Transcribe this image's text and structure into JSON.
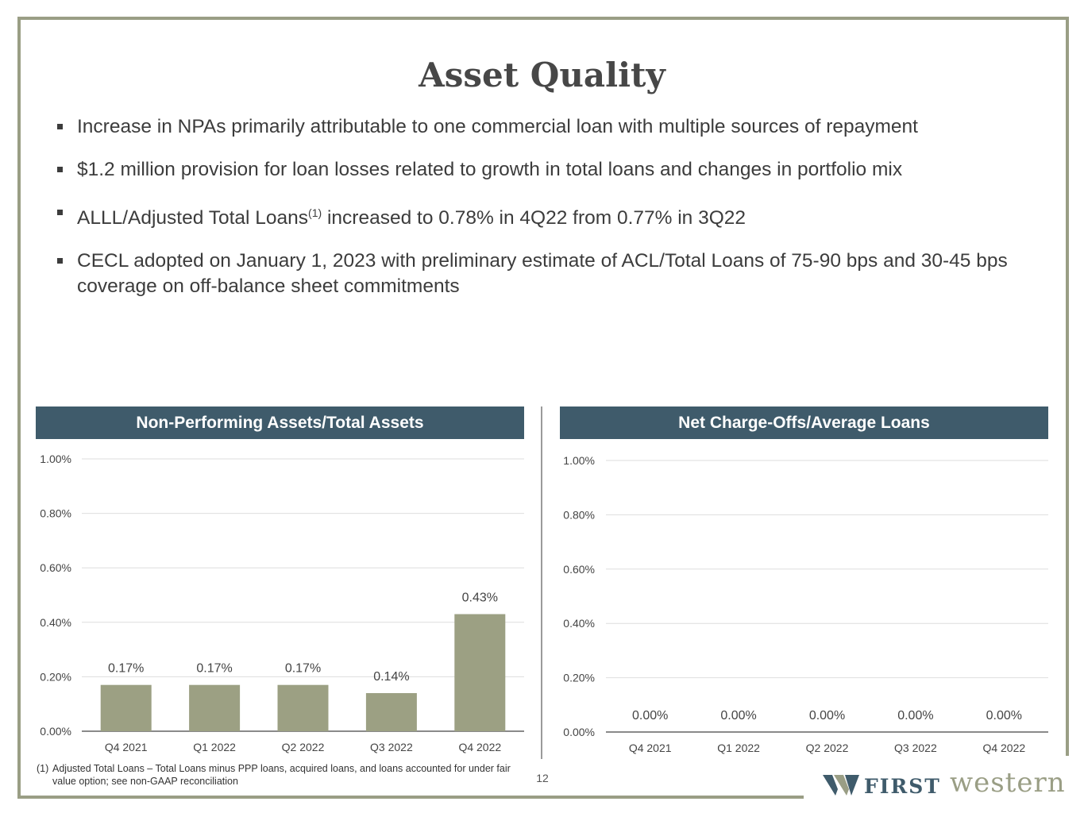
{
  "title": "Asset Quality",
  "bullets": [
    {
      "text": "Increase in NPAs primarily attributable to one commercial loan with multiple sources of repayment"
    },
    {
      "text": "$1.2 million provision for loan losses related to growth in total loans and changes in portfolio mix"
    },
    {
      "pre": "ALLL/Adjusted Total Loans",
      "sup": "(1)",
      "post": " increased to 0.78% in 4Q22 from 0.77% in 3Q22"
    },
    {
      "text": "CECL adopted on January 1, 2023 with preliminary estimate of ACL/Total Loans of 75-90 bps and 30-45 bps coverage on off-balance sheet commitments"
    }
  ],
  "colors": {
    "header": "#3f5b6b",
    "bar": "#9ca083",
    "frame": "#9a9e85"
  },
  "chart_data": [
    {
      "type": "bar",
      "title": "Non-Performing Assets/Total Assets",
      "categories": [
        "Q4 2021",
        "Q1 2022",
        "Q2 2022",
        "Q3 2022",
        "Q4 2022"
      ],
      "values": [
        0.17,
        0.17,
        0.17,
        0.14,
        0.43
      ],
      "labels": [
        "0.17%",
        "0.17%",
        "0.17%",
        "0.14%",
        "0.43%"
      ],
      "yticks": [
        "0.00%",
        "0.20%",
        "0.40%",
        "0.60%",
        "0.80%",
        "1.00%"
      ],
      "ylim": [
        0,
        1.0
      ],
      "xlabel": "",
      "ylabel": ""
    },
    {
      "type": "bar",
      "title": "Net Charge-Offs/Average Loans",
      "categories": [
        "Q4 2021",
        "Q1 2022",
        "Q2 2022",
        "Q3 2022",
        "Q4 2022"
      ],
      "values": [
        0.0,
        0.0,
        0.0,
        0.0,
        0.0
      ],
      "labels": [
        "0.00%",
        "0.00%",
        "0.00%",
        "0.00%",
        "0.00%"
      ],
      "yticks": [
        "0.00%",
        "0.20%",
        "0.40%",
        "0.60%",
        "0.80%",
        "1.00%"
      ],
      "ylim": [
        0,
        1.0
      ],
      "xlabel": "",
      "ylabel": ""
    }
  ],
  "footnote": {
    "num": "(1)",
    "text": "Adjusted Total Loans – Total Loans minus PPP loans, acquired loans, and loans accounted for under fair value option; see non-GAAP reconciliation"
  },
  "page_number": "12",
  "logo": {
    "first": "FIRST",
    "second": "western"
  }
}
